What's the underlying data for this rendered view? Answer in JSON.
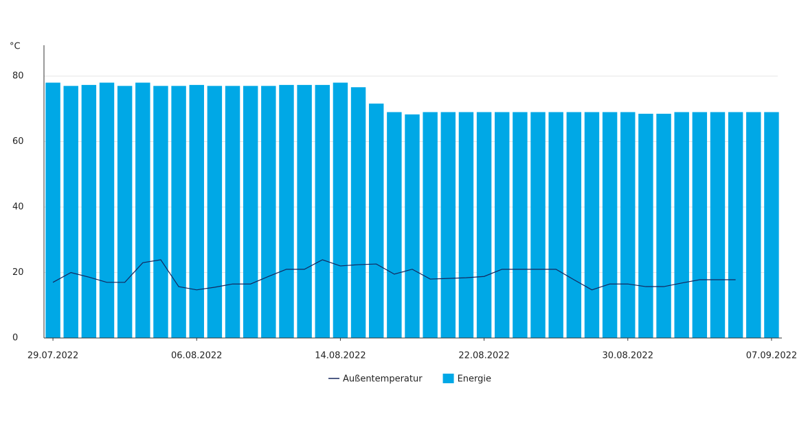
{
  "chart_data": {
    "type": "bar",
    "y_unit": "°C",
    "categories": [
      "29.07.2022",
      null,
      null,
      null,
      null,
      null,
      null,
      null,
      "06.08.2022",
      null,
      null,
      null,
      null,
      null,
      null,
      null,
      "14.08.2022",
      null,
      null,
      null,
      null,
      null,
      null,
      null,
      "22.08.2022",
      null,
      null,
      null,
      null,
      null,
      null,
      null,
      "30.08.2022",
      null,
      null,
      null,
      null,
      null,
      null,
      null,
      "07.09.2022"
    ],
    "series": [
      {
        "name": "Außentemperatur",
        "type": "line",
        "color": "#14265c",
        "values": [
          17,
          20,
          18.6,
          17,
          17,
          23,
          23.9,
          15.7,
          14.7,
          15.5,
          16.5,
          16.5,
          18.8,
          21,
          21,
          23.9,
          22,
          22.4,
          22.6,
          19.5,
          21,
          18,
          18.2,
          18.4,
          18.8,
          21,
          21,
          21,
          21,
          17.8,
          14.7,
          16.5,
          16.5,
          15.7,
          15.7,
          16.8,
          17.8,
          17.8,
          17.8,
          null,
          null
        ]
      },
      {
        "name": "Energie",
        "type": "bar",
        "color": "#00a8e6",
        "values": [
          78,
          77,
          77.3,
          78,
          77,
          78,
          77,
          77,
          77.3,
          77,
          77,
          77,
          77,
          77.3,
          77.3,
          77.3,
          78,
          76.6,
          71.6,
          69,
          68.3,
          69,
          69,
          69,
          69,
          69,
          69,
          69,
          69,
          69,
          69,
          69,
          69,
          68.5,
          68.5,
          69,
          69,
          69,
          69,
          69,
          69
        ]
      }
    ],
    "ylim": [
      0,
      89
    ],
    "yticks": [
      0,
      20,
      40,
      60,
      80
    ],
    "grid": true
  }
}
